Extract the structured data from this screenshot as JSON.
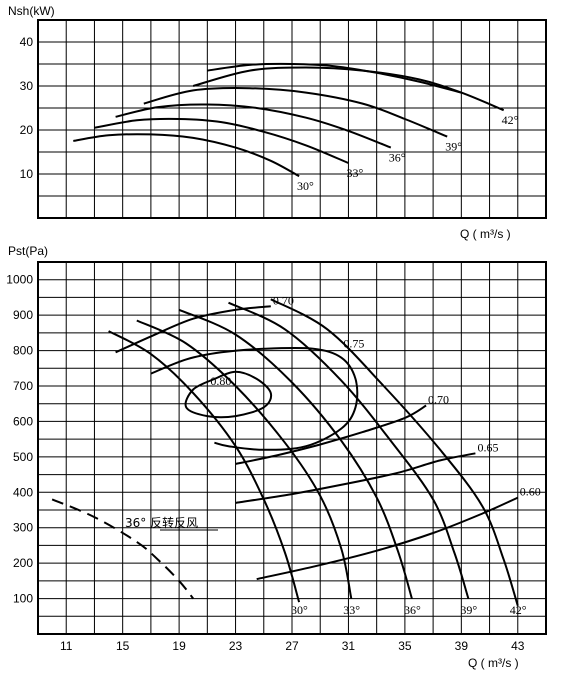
{
  "chart_data": [
    {
      "type": "line",
      "ylabel": "Nsh(kW)",
      "xlabel": "Q ( m³/s )",
      "ylim": [
        0,
        45
      ],
      "yticks": [
        "10",
        "20",
        "30",
        "40"
      ],
      "grid": true,
      "series": [
        {
          "name": "30°",
          "x": [
            11.5,
            14,
            17,
            20,
            23,
            25.5,
            27.5
          ],
          "y": [
            17.5,
            18.8,
            19.0,
            18.2,
            16.0,
            13.0,
            9.5
          ]
        },
        {
          "name": "33°",
          "x": [
            13,
            16,
            19,
            22,
            25,
            28,
            31
          ],
          "y": [
            20.5,
            22.2,
            22.5,
            21.8,
            19.6,
            16.5,
            12.5
          ]
        },
        {
          "name": "36°",
          "x": [
            14.5,
            17.5,
            21,
            24.5,
            28,
            31,
            34
          ],
          "y": [
            23,
            25.2,
            25.8,
            25.0,
            22.8,
            19.8,
            16.0
          ]
        },
        {
          "name": "39°",
          "x": [
            16.5,
            20,
            24,
            28,
            32,
            35,
            38
          ],
          "y": [
            26,
            29,
            29.5,
            28.5,
            26.0,
            22.5,
            18.5
          ]
        },
        {
          "name": "42°",
          "x": [
            20,
            24,
            28,
            32,
            36,
            39,
            42
          ],
          "y": [
            30,
            33.5,
            34.2,
            33.5,
            31.5,
            28.5,
            24.5
          ]
        },
        {
          "name": "",
          "x": [
            21,
            24,
            27,
            30,
            33,
            36,
            39
          ],
          "y": [
            33.5,
            34.8,
            35.0,
            34.5,
            33.0,
            31.0,
            28.5
          ]
        }
      ]
    },
    {
      "type": "line",
      "ylabel": "Pst(Pa)",
      "xlabel": "Q ( m³/s )",
      "xticks": [
        "11",
        "15",
        "19",
        "23",
        "27",
        "31",
        "35",
        "39",
        "43"
      ],
      "yticks": [
        "100",
        "200",
        "300",
        "400",
        "500",
        "600",
        "700",
        "800",
        "900",
        "1000"
      ],
      "xlim": [
        9,
        45
      ],
      "ylim": [
        0,
        1050
      ],
      "grid": true,
      "series": [
        {
          "name": "30°",
          "x": [
            14,
            17,
            20,
            23,
            25,
            26.5,
            27.5
          ],
          "y": [
            855,
            790,
            680,
            530,
            380,
            230,
            90
          ]
        },
        {
          "name": "33°",
          "x": [
            16,
            19.5,
            23,
            26.5,
            29,
            30.5,
            31.2
          ],
          "y": [
            885,
            820,
            700,
            540,
            390,
            240,
            100
          ]
        },
        {
          "name": "36°",
          "x": [
            19,
            23,
            27,
            30.5,
            33,
            34.5,
            35.5
          ],
          "y": [
            915,
            845,
            710,
            545,
            385,
            235,
            100
          ]
        },
        {
          "name": "39°",
          "x": [
            22.5,
            26.5,
            30.5,
            34,
            37,
            38.5,
            39.5
          ],
          "y": [
            935,
            860,
            715,
            545,
            380,
            230,
            100
          ]
        },
        {
          "name": "42°",
          "x": [
            25.5,
            29.5,
            33.5,
            37.5,
            40.5,
            42,
            43
          ],
          "y": [
            945,
            860,
            700,
            520,
            360,
            210,
            80
          ]
        }
      ],
      "efficiency_contours": [
        {
          "label": "0.70",
          "x": [
            14.5,
            17,
            20,
            23,
            25.5
          ],
          "y": [
            795,
            840,
            890,
            915,
            925
          ]
        },
        {
          "label": "0.75",
          "x": [
            17,
            19.5,
            22,
            25,
            28.5,
            30.5,
            31.5,
            31.5,
            30.5,
            28,
            25,
            22.5,
            21.5
          ],
          "y": [
            735,
            775,
            795,
            805,
            805,
            780,
            720,
            640,
            580,
            530,
            520,
            530,
            540
          ]
        },
        {
          "label": "0.80",
          "x": [
            21.5,
            23,
            24.5,
            25.5,
            25,
            23,
            21,
            19.5,
            20,
            21.5
          ],
          "y": [
            720,
            740,
            720,
            680,
            640,
            615,
            615,
            640,
            690,
            720
          ]
        },
        {
          "label": "0.70",
          "x": [
            23,
            26,
            29,
            32,
            35,
            36.5
          ],
          "y": [
            480,
            505,
            535,
            570,
            610,
            645
          ]
        },
        {
          "label": "0.65",
          "x": [
            23,
            27,
            31,
            34.5,
            37.5,
            40
          ],
          "y": [
            370,
            395,
            425,
            455,
            490,
            510
          ]
        },
        {
          "label": "0.60",
          "x": [
            24.5,
            28.5,
            33,
            37,
            40.5,
            43
          ],
          "y": [
            155,
            190,
            235,
            285,
            340,
            385
          ]
        }
      ],
      "annotations": [
        "36° 反转反风"
      ],
      "reverse_curve": {
        "x": [
          10,
          13,
          16,
          17.5,
          19,
          20
        ],
        "y": [
          380,
          330,
          260,
          210,
          150,
          100
        ]
      }
    }
  ]
}
